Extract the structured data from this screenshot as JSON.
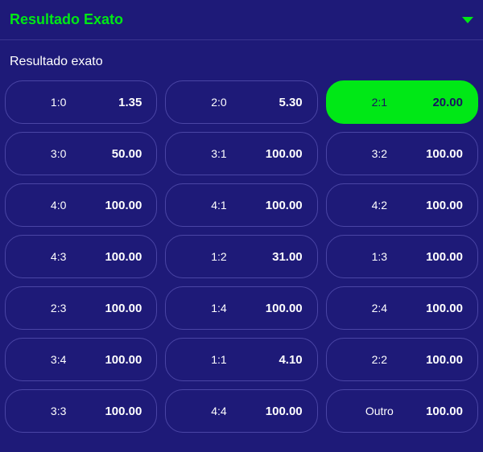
{
  "header": {
    "title": "Resultado Exato"
  },
  "subtitle": "Resultado exato",
  "colors": {
    "background": "#1e1a78",
    "accent": "#00e816",
    "border": "#4a45a5",
    "text": "#ffffff",
    "selected_text": "#17135f"
  },
  "bets": [
    {
      "label": "1:0",
      "odds": "1.35",
      "selected": false
    },
    {
      "label": "2:0",
      "odds": "5.30",
      "selected": false
    },
    {
      "label": "2:1",
      "odds": "20.00",
      "selected": true
    },
    {
      "label": "3:0",
      "odds": "50.00",
      "selected": false
    },
    {
      "label": "3:1",
      "odds": "100.00",
      "selected": false
    },
    {
      "label": "3:2",
      "odds": "100.00",
      "selected": false
    },
    {
      "label": "4:0",
      "odds": "100.00",
      "selected": false
    },
    {
      "label": "4:1",
      "odds": "100.00",
      "selected": false
    },
    {
      "label": "4:2",
      "odds": "100.00",
      "selected": false
    },
    {
      "label": "4:3",
      "odds": "100.00",
      "selected": false
    },
    {
      "label": "1:2",
      "odds": "31.00",
      "selected": false
    },
    {
      "label": "1:3",
      "odds": "100.00",
      "selected": false
    },
    {
      "label": "2:3",
      "odds": "100.00",
      "selected": false
    },
    {
      "label": "1:4",
      "odds": "100.00",
      "selected": false
    },
    {
      "label": "2:4",
      "odds": "100.00",
      "selected": false
    },
    {
      "label": "3:4",
      "odds": "100.00",
      "selected": false
    },
    {
      "label": "1:1",
      "odds": "4.10",
      "selected": false
    },
    {
      "label": "2:2",
      "odds": "100.00",
      "selected": false
    },
    {
      "label": "3:3",
      "odds": "100.00",
      "selected": false
    },
    {
      "label": "4:4",
      "odds": "100.00",
      "selected": false
    },
    {
      "label": "Outro",
      "odds": "100.00",
      "selected": false
    }
  ]
}
